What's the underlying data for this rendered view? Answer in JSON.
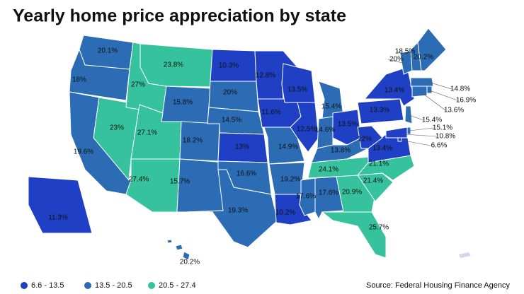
{
  "chart_data": {
    "type": "choropleth",
    "title": "Yearly home price appreciation by state",
    "source": "Source: Federal Housing Finance Agency",
    "legend": [
      {
        "label": "6.6 - 13.5",
        "min": 6.6,
        "max": 13.5,
        "color": "#1f3fc4"
      },
      {
        "label": "13.5 - 20.5",
        "min": 13.5,
        "max": 20.5,
        "color": "#2b6cb5"
      },
      {
        "label": "20.5 - 27.4",
        "min": 20.5,
        "max": 27.4,
        "color": "#35c29c"
      }
    ],
    "values": [
      20.1,
      18,
      19.6,
      23,
      27,
      23.8,
      15.8,
      27.1,
      18.2,
      27.4,
      15.7,
      10.3,
      20,
      14.5,
      13,
      16.6,
      19.3,
      12.8,
      11.6,
      14.9,
      19.2,
      10.2,
      13.5,
      12.5,
      15.4,
      14.6,
      13.5,
      13.8,
      24.1,
      17.6,
      17.6,
      20.9,
      25.7,
      21.4,
      21.1,
      13.4,
      12,
      13.3,
      13.4,
      20,
      18.5,
      20.2,
      14.8,
      16.9,
      13.6,
      15.4,
      15.1,
      10.8,
      6.6,
      11.3,
      20.2
    ],
    "value_labels": [
      "20.1%",
      "18%",
      "19.6%",
      "23%",
      "27%",
      "23.8%",
      "15.8%",
      "27.1%",
      "18.2%",
      "27.4%",
      "15.7%",
      "10.3%",
      "20%",
      "14.5%",
      "13%",
      "16.6%",
      "19.3%",
      "12.8%",
      "11.6%",
      "14.9%",
      "19.2%",
      "10.2%",
      "13.5%",
      "12.5%",
      "15.4%",
      "14.6%",
      "13.5%",
      "13.8%",
      "24.1%",
      "17.6%",
      "17.6%",
      "20.9%",
      "25.7%",
      "21.4%",
      "21.1%",
      "13.4%",
      "12%",
      "13.3%",
      "13.4%",
      "20%",
      "18.5%",
      "20.2%",
      "14.8%",
      "16.9%",
      "13.6%",
      "15.4%",
      "15.1%",
      "10.8%",
      "6.6%",
      "11.3%",
      "20.2%"
    ]
  }
}
